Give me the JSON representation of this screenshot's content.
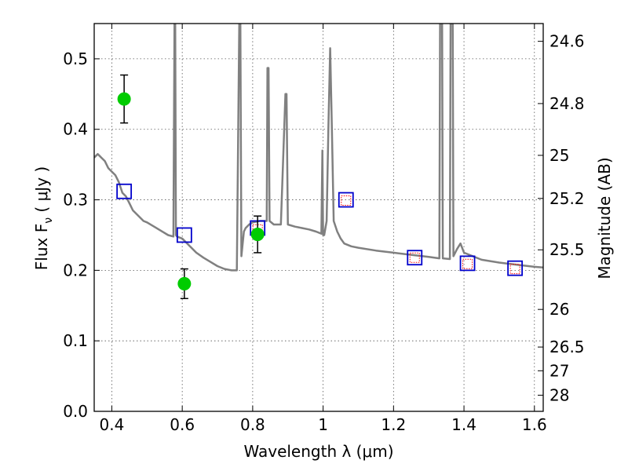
{
  "chart_data": {
    "type": "scatter",
    "xlabel": "Wavelength  λ (μm)",
    "ylabel": "Flux  F",
    "ylabel_subscript": "ν",
    "ylabel_unit": "  ( μJy )",
    "ylabel_right": "Magnitude (AB)",
    "xlim": [
      0.35,
      1.625
    ],
    "ylim": [
      0.0,
      0.55
    ],
    "grid": true,
    "x_ticks": [
      0.4,
      0.6,
      0.8,
      1.0,
      1.2,
      1.4,
      1.6
    ],
    "x_tick_labels": [
      "0.4",
      "0.6",
      "0.8",
      "1",
      "1.2",
      "1.4",
      "1.6"
    ],
    "y_ticks": [
      0.0,
      0.1,
      0.2,
      0.3,
      0.4,
      0.5
    ],
    "y_tick_labels": [
      "0.0",
      "0.1",
      "0.2",
      "0.3",
      "0.4",
      "0.5"
    ],
    "right_axis_ticks": [
      "24.6",
      "24.8",
      "25",
      "25.2",
      "25.5",
      "26",
      "26.5",
      "27",
      "28"
    ],
    "right_axis_tick_values": [
      24.6,
      24.8,
      25.0,
      25.2,
      25.5,
      26.0,
      26.5,
      27.0,
      28.0
    ],
    "series": [
      {
        "kind": "spectrum",
        "color": "#808080",
        "x": [
          0.35,
          0.36,
          0.37,
          0.38,
          0.39,
          0.4,
          0.41,
          0.42,
          0.43,
          0.44,
          0.45,
          0.46,
          0.47,
          0.48,
          0.49,
          0.5,
          0.52,
          0.54,
          0.56,
          0.575,
          0.578,
          0.58,
          0.582,
          0.585,
          0.6,
          0.62,
          0.64,
          0.66,
          0.68,
          0.7,
          0.72,
          0.74,
          0.755,
          0.762,
          0.765,
          0.768,
          0.775,
          0.78,
          0.79,
          0.8,
          0.82,
          0.84,
          0.842,
          0.845,
          0.848,
          0.86,
          0.88,
          0.893,
          0.896,
          0.9,
          0.92,
          0.94,
          0.96,
          0.98,
          0.995,
          0.998,
          1.0,
          1.003,
          1.01,
          1.015,
          1.02,
          1.025,
          1.03,
          1.04,
          1.05,
          1.06,
          1.08,
          1.1,
          1.15,
          1.2,
          1.25,
          1.3,
          1.33,
          1.332,
          1.335,
          1.338,
          1.34,
          1.36,
          1.362,
          1.365,
          1.368,
          1.37,
          1.38,
          1.39,
          1.4,
          1.45,
          1.5,
          1.55,
          1.6,
          1.625
        ],
        "y": [
          0.36,
          0.365,
          0.36,
          0.355,
          0.345,
          0.34,
          0.335,
          0.325,
          0.31,
          0.305,
          0.295,
          0.285,
          0.28,
          0.275,
          0.27,
          0.268,
          0.262,
          0.256,
          0.25,
          0.248,
          0.55,
          0.55,
          0.25,
          0.248,
          0.245,
          0.235,
          0.225,
          0.218,
          0.212,
          0.206,
          0.202,
          0.2,
          0.2,
          0.55,
          0.55,
          0.22,
          0.255,
          0.26,
          0.265,
          0.268,
          0.27,
          0.27,
          0.487,
          0.487,
          0.27,
          0.265,
          0.265,
          0.45,
          0.45,
          0.265,
          0.262,
          0.26,
          0.258,
          0.255,
          0.252,
          0.37,
          0.25,
          0.25,
          0.27,
          0.4,
          0.515,
          0.4,
          0.27,
          0.255,
          0.245,
          0.238,
          0.234,
          0.232,
          0.228,
          0.225,
          0.222,
          0.219,
          0.217,
          0.55,
          0.55,
          0.55,
          0.217,
          0.216,
          0.55,
          0.55,
          0.55,
          0.22,
          0.23,
          0.238,
          0.225,
          0.215,
          0.211,
          0.208,
          0.205,
          0.204
        ]
      },
      {
        "kind": "observed",
        "color": "#00cc00",
        "points": [
          {
            "x": 0.435,
            "y": 0.443,
            "err": 0.034
          },
          {
            "x": 0.606,
            "y": 0.181,
            "err": 0.021
          },
          {
            "x": 0.814,
            "y": 0.251,
            "err": 0.026
          }
        ]
      },
      {
        "kind": "model",
        "color": "#0000cc",
        "x": [
          0.435,
          0.606,
          0.814,
          1.065,
          1.26,
          1.41,
          1.545
        ],
        "y": [
          0.312,
          0.25,
          0.26,
          0.3,
          0.218,
          0.21,
          0.203
        ]
      },
      {
        "kind": "model-secondary",
        "color": "#ff0000",
        "x": [
          0.814,
          1.065,
          1.26,
          1.41,
          1.545
        ],
        "y": [
          0.258,
          0.299,
          0.218,
          0.209,
          0.202
        ]
      }
    ]
  }
}
